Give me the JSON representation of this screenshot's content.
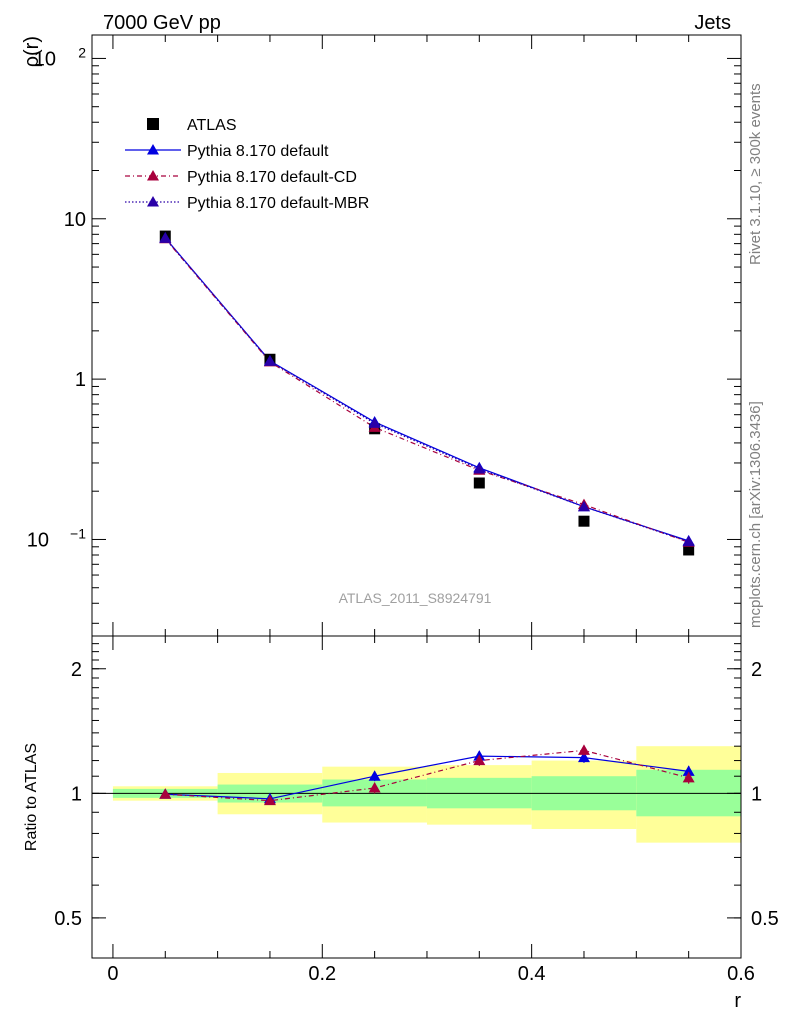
{
  "header": {
    "left": "7000 GeV pp",
    "right": "Jets"
  },
  "side_text": {
    "rivet": "Rivet 3.1.10, ≥ 300k events",
    "mcplots": "mcplots.cern.ch [arXiv:1306.3436]"
  },
  "chart_data": [
    {
      "type": "line",
      "title": "",
      "xlabel": "",
      "ylabel": "ρ(r)",
      "yscale": "log",
      "xlim": [
        -0.02,
        0.6
      ],
      "ylim": [
        0.025,
        140
      ],
      "x_ticks": [],
      "y_ticks": [
        {
          "v": 100,
          "base": "10",
          "exp": "2"
        },
        {
          "v": 10,
          "base": "10",
          "exp": ""
        },
        {
          "v": 1,
          "base": "1",
          "exp": ""
        },
        {
          "v": 0.1,
          "base": "10",
          "exp": "−1"
        }
      ],
      "watermark": "ATLAS_2011_S8924791",
      "legend_position": "top-left",
      "x": [
        0.05,
        0.15,
        0.25,
        0.35,
        0.45,
        0.55
      ],
      "reference": {
        "name": "ATLAS",
        "color": "#000000",
        "marker": "square",
        "values": [
          7.8,
          1.33,
          0.49,
          0.225,
          0.13,
          0.086
        ]
      },
      "series": [
        {
          "name": "Pythia 8.170 default",
          "color": "#0000e0",
          "dash": "",
          "marker": "triangle",
          "values": [
            7.6,
            1.3,
            0.54,
            0.28,
            0.16,
            0.098
          ]
        },
        {
          "name": "Pythia 8.170 default-CD",
          "color": "#a8003c",
          "dash": "5,3,1,3",
          "marker": "triangle",
          "values": [
            7.5,
            1.28,
            0.5,
            0.27,
            0.165,
            0.096
          ]
        },
        {
          "name": "Pythia 8.170 default-MBR",
          "color": "#2a00a8",
          "dash": "1.5,2",
          "marker": "triangle",
          "values": [
            7.55,
            1.29,
            0.53,
            0.275,
            0.16,
            0.097
          ]
        }
      ]
    },
    {
      "type": "line",
      "title": "",
      "xlabel": "r",
      "ylabel": "Ratio to ATLAS",
      "yscale": "log",
      "xlim": [
        -0.02,
        0.6
      ],
      "ylim": [
        0.4,
        2.4
      ],
      "x_ticks": [
        {
          "v": 0,
          "label": "0"
        },
        {
          "v": 0.2,
          "label": "0.2"
        },
        {
          "v": 0.4,
          "label": "0.4"
        },
        {
          "v": 0.6,
          "label": "0.6"
        }
      ],
      "y_ticks": [
        {
          "v": 2,
          "label": "2"
        },
        {
          "v": 1,
          "label": "1"
        },
        {
          "v": 0.5,
          "label": "0.5"
        }
      ],
      "bands": [
        {
          "x0": 0.0,
          "x1": 0.1,
          "yellow": [
            0.96,
            1.04
          ],
          "green": [
            0.975,
            1.025
          ]
        },
        {
          "x0": 0.1,
          "x1": 0.2,
          "yellow": [
            0.89,
            1.12
          ],
          "green": [
            0.95,
            1.05
          ]
        },
        {
          "x0": 0.2,
          "x1": 0.3,
          "yellow": [
            0.85,
            1.16
          ],
          "green": [
            0.93,
            1.08
          ]
        },
        {
          "x0": 0.3,
          "x1": 0.4,
          "yellow": [
            0.84,
            1.17
          ],
          "green": [
            0.92,
            1.09
          ]
        },
        {
          "x0": 0.4,
          "x1": 0.5,
          "yellow": [
            0.82,
            1.2
          ],
          "green": [
            0.91,
            1.1
          ]
        },
        {
          "x0": 0.5,
          "x1": 0.6,
          "yellow": [
            0.76,
            1.3
          ],
          "green": [
            0.88,
            1.14
          ]
        }
      ],
      "x": [
        0.05,
        0.15,
        0.25,
        0.35,
        0.45,
        0.55
      ],
      "series": [
        {
          "name": "Pythia 8.170 default",
          "color": "#0000e0",
          "dash": "",
          "values": [
            0.995,
            0.97,
            1.1,
            1.23,
            1.22,
            1.13
          ],
          "errors": [
            0.012,
            0.015,
            0.03,
            0.035,
            0.035,
            0.035
          ]
        },
        {
          "name": "Pythia 8.170 default-CD",
          "color": "#a8003c",
          "dash": "5,3,1,3",
          "values": [
            0.995,
            0.96,
            1.03,
            1.2,
            1.27,
            1.09
          ],
          "errors": [
            0.012,
            0.015,
            0.03,
            0.035,
            0.035,
            0.035
          ]
        }
      ]
    }
  ]
}
